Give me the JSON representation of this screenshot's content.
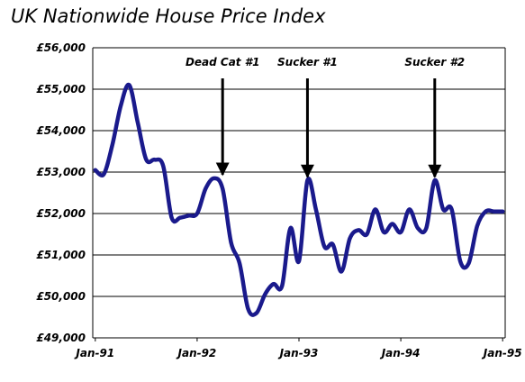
{
  "chart_data": {
    "type": "line",
    "title": "UK Nationwide House Price Index",
    "xlabel": "",
    "ylabel": "",
    "ylim": [
      49000,
      56000
    ],
    "yticks": [
      "£49,000",
      "£50,000",
      "£51,000",
      "£52,000",
      "£53,000",
      "£54,000",
      "£55,000",
      "£56,000"
    ],
    "ytick_values": [
      49000,
      50000,
      51000,
      52000,
      53000,
      54000,
      55000,
      56000
    ],
    "xticks": [
      "Jan-91",
      "Jan-92",
      "Jan-93",
      "Jan-94",
      "Jan-95"
    ],
    "xtick_values": [
      0,
      12,
      24,
      36,
      48
    ],
    "xlim": [
      -0.3,
      48.3
    ],
    "grid": "horizontal",
    "series": [
      {
        "color": "#1a1a8c",
        "x": [
          0,
          1,
          2,
          3,
          4,
          5,
          6,
          7,
          8,
          9,
          10,
          11,
          12,
          13,
          14,
          15,
          16,
          17,
          18,
          19,
          20,
          21,
          22,
          23,
          24,
          25,
          26,
          27,
          28,
          29,
          30,
          31,
          32,
          33,
          34,
          35,
          36,
          37,
          38,
          39,
          40,
          41,
          42,
          43,
          44,
          45,
          46,
          47,
          48
        ],
        "values": [
          53050,
          52950,
          53650,
          54600,
          55100,
          54200,
          53300,
          53300,
          53150,
          51900,
          51900,
          51950,
          52000,
          52600,
          52850,
          52600,
          51300,
          50800,
          49700,
          49600,
          50050,
          50300,
          50250,
          51650,
          50850,
          52800,
          52100,
          51200,
          51250,
          50600,
          51400,
          51600,
          51500,
          52100,
          51550,
          51750,
          51550,
          52100,
          51650,
          51650,
          52800,
          52100,
          52100,
          50850,
          50800,
          51700,
          52050,
          52050,
          52050
        ]
      }
    ],
    "annotations": [
      {
        "text": "Dead Cat #1",
        "x": 15.0,
        "y": 52850
      },
      {
        "text": "Sucker #1",
        "x": 25.0,
        "y": 52800
      },
      {
        "text": "Sucker #2",
        "x": 40.0,
        "y": 52800
      }
    ]
  }
}
